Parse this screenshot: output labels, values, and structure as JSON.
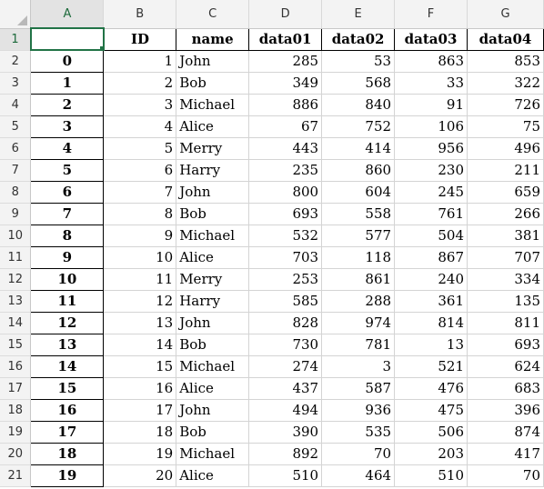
{
  "columns": [
    "A",
    "B",
    "C",
    "D",
    "E",
    "F",
    "G"
  ],
  "header_row": {
    "row_label": "1",
    "cells": [
      "",
      "ID",
      "name",
      "data01",
      "data02",
      "data03",
      "data04"
    ]
  },
  "rows": [
    {
      "row_label": "2",
      "index": "0",
      "id": "1",
      "name": "John",
      "data01": "285",
      "data02": "53",
      "data03": "863",
      "data04": "853"
    },
    {
      "row_label": "3",
      "index": "1",
      "id": "2",
      "name": "Bob",
      "data01": "349",
      "data02": "568",
      "data03": "33",
      "data04": "322"
    },
    {
      "row_label": "4",
      "index": "2",
      "id": "3",
      "name": "Michael",
      "data01": "886",
      "data02": "840",
      "data03": "91",
      "data04": "726"
    },
    {
      "row_label": "5",
      "index": "3",
      "id": "4",
      "name": "Alice",
      "data01": "67",
      "data02": "752",
      "data03": "106",
      "data04": "75"
    },
    {
      "row_label": "6",
      "index": "4",
      "id": "5",
      "name": "Merry",
      "data01": "443",
      "data02": "414",
      "data03": "956",
      "data04": "496"
    },
    {
      "row_label": "7",
      "index": "5",
      "id": "6",
      "name": "Harry",
      "data01": "235",
      "data02": "860",
      "data03": "230",
      "data04": "211"
    },
    {
      "row_label": "8",
      "index": "6",
      "id": "7",
      "name": "John",
      "data01": "800",
      "data02": "604",
      "data03": "245",
      "data04": "659"
    },
    {
      "row_label": "9",
      "index": "7",
      "id": "8",
      "name": "Bob",
      "data01": "693",
      "data02": "558",
      "data03": "761",
      "data04": "266"
    },
    {
      "row_label": "10",
      "index": "8",
      "id": "9",
      "name": "Michael",
      "data01": "532",
      "data02": "577",
      "data03": "504",
      "data04": "381"
    },
    {
      "row_label": "11",
      "index": "9",
      "id": "10",
      "name": "Alice",
      "data01": "703",
      "data02": "118",
      "data03": "867",
      "data04": "707"
    },
    {
      "row_label": "12",
      "index": "10",
      "id": "11",
      "name": "Merry",
      "data01": "253",
      "data02": "861",
      "data03": "240",
      "data04": "334"
    },
    {
      "row_label": "13",
      "index": "11",
      "id": "12",
      "name": "Harry",
      "data01": "585",
      "data02": "288",
      "data03": "361",
      "data04": "135"
    },
    {
      "row_label": "14",
      "index": "12",
      "id": "13",
      "name": "John",
      "data01": "828",
      "data02": "974",
      "data03": "814",
      "data04": "811"
    },
    {
      "row_label": "15",
      "index": "13",
      "id": "14",
      "name": "Bob",
      "data01": "730",
      "data02": "781",
      "data03": "13",
      "data04": "693"
    },
    {
      "row_label": "16",
      "index": "14",
      "id": "15",
      "name": "Michael",
      "data01": "274",
      "data02": "3",
      "data03": "521",
      "data04": "624"
    },
    {
      "row_label": "17",
      "index": "15",
      "id": "16",
      "name": "Alice",
      "data01": "437",
      "data02": "587",
      "data03": "476",
      "data04": "683"
    },
    {
      "row_label": "18",
      "index": "16",
      "id": "17",
      "name": "John",
      "data01": "494",
      "data02": "936",
      "data03": "475",
      "data04": "396"
    },
    {
      "row_label": "19",
      "index": "17",
      "id": "18",
      "name": "Bob",
      "data01": "390",
      "data02": "535",
      "data03": "506",
      "data04": "874"
    },
    {
      "row_label": "20",
      "index": "18",
      "id": "19",
      "name": "Michael",
      "data01": "892",
      "data02": "70",
      "data03": "203",
      "data04": "417"
    },
    {
      "row_label": "21",
      "index": "19",
      "id": "20",
      "name": "Alice",
      "data01": "510",
      "data02": "464",
      "data03": "510",
      "data04": "70"
    }
  ],
  "selection": {
    "active_cell": "A1",
    "selected_column": "A",
    "selected_row": "1"
  },
  "colors": {
    "accent": "#217346",
    "header_bg": "#f3f3f3",
    "gridline": "#d4d4d4"
  }
}
